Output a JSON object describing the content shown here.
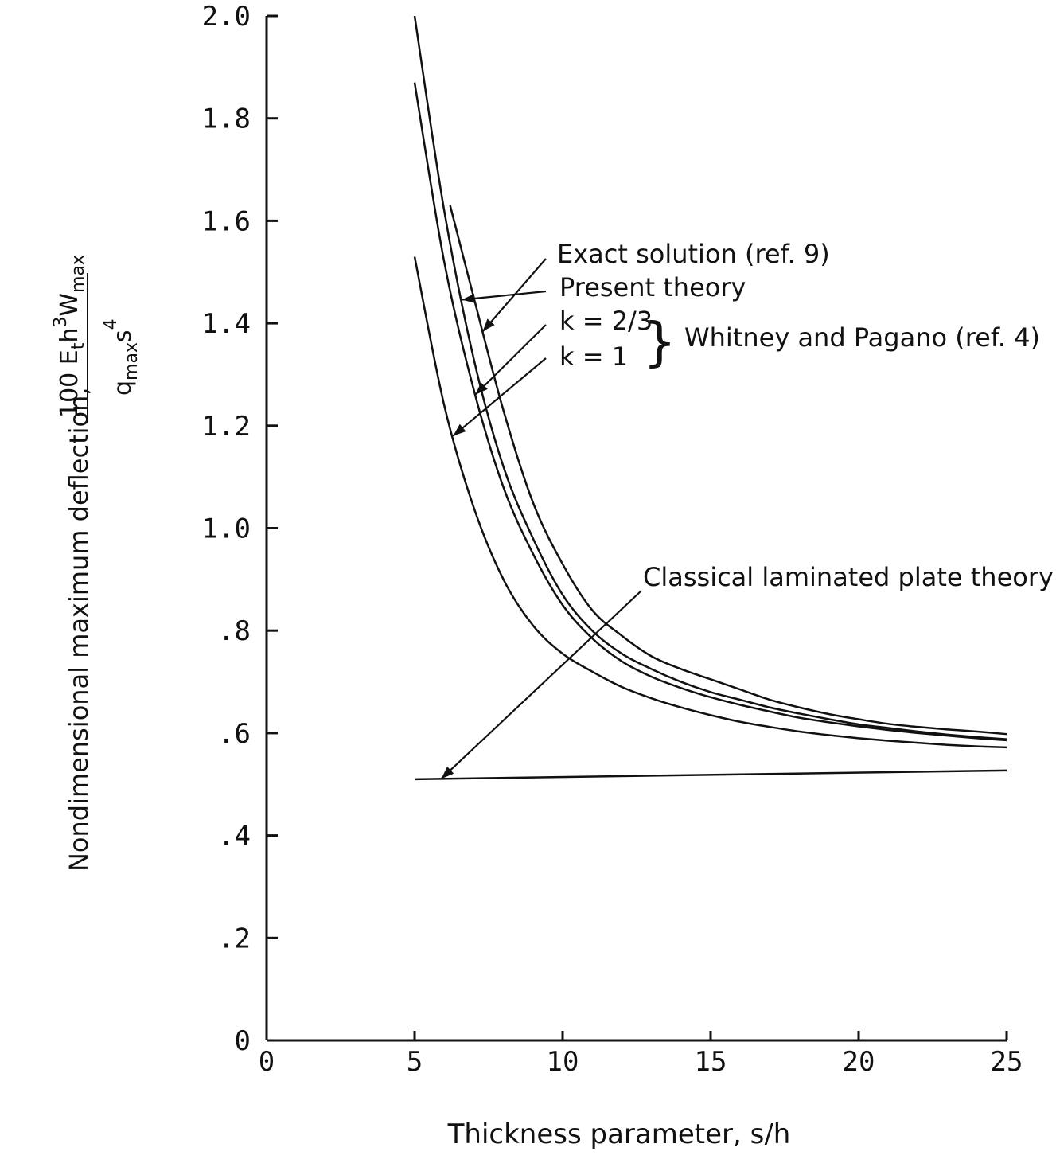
{
  "chart_data": {
    "type": "line",
    "title": "",
    "xlabel": "Thickness parameter, s/h",
    "ylabel": {
      "prefix": "Nondimensional maximum deflection,",
      "numerator_parts": [
        "100 E",
        "t",
        "h",
        "3",
        "W",
        "max"
      ],
      "denominator_parts": [
        "q",
        "max",
        "s",
        "4"
      ]
    },
    "xlim": [
      0,
      25
    ],
    "ylim": [
      0,
      2.0
    ],
    "x_ticks": [
      0,
      5,
      10,
      15,
      20,
      25
    ],
    "x_tick_labels": [
      "0",
      "5",
      "10",
      "15",
      "20",
      "25"
    ],
    "y_ticks": [
      0,
      0.2,
      0.4,
      0.6,
      0.8,
      1.0,
      1.2,
      1.4,
      1.6,
      1.8,
      2.0
    ],
    "y_tick_labels": [
      "0",
      ".2",
      ".4",
      ".6",
      ".8",
      "1.0",
      "1.2",
      "1.4",
      "1.6",
      "1.8",
      "2.0"
    ],
    "grid": false,
    "series": [
      {
        "name": "Exact solution (ref. 9)",
        "x": [
          6.2,
          7,
          8,
          9,
          10,
          11,
          12,
          13,
          14,
          15,
          16,
          17,
          18,
          19,
          20,
          21,
          22,
          23,
          24,
          25
        ],
        "y": [
          1.63,
          1.45,
          1.23,
          1.05,
          0.93,
          0.84,
          0.79,
          0.75,
          0.725,
          0.705,
          0.685,
          0.665,
          0.65,
          0.637,
          0.627,
          0.618,
          0.612,
          0.607,
          0.603,
          0.598
        ]
      },
      {
        "name": "Present theory",
        "x": [
          5,
          6,
          7,
          8,
          9,
          10,
          11,
          12,
          13,
          14,
          15,
          16,
          17,
          18,
          19,
          20,
          21,
          22,
          23,
          24,
          25
        ],
        "y": [
          2.0,
          1.62,
          1.33,
          1.12,
          0.98,
          0.87,
          0.8,
          0.755,
          0.725,
          0.7,
          0.68,
          0.665,
          0.65,
          0.638,
          0.627,
          0.617,
          0.61,
          0.603,
          0.597,
          0.592,
          0.588
        ]
      },
      {
        "name": "k = 2/3",
        "x": [
          5,
          6,
          7,
          8,
          9,
          10,
          11,
          12,
          13,
          14,
          15,
          16,
          17,
          18,
          19,
          20,
          21,
          22,
          23,
          24,
          25
        ],
        "y": [
          1.87,
          1.52,
          1.27,
          1.08,
          0.95,
          0.85,
          0.785,
          0.74,
          0.71,
          0.688,
          0.67,
          0.655,
          0.642,
          0.63,
          0.621,
          0.613,
          0.606,
          0.6,
          0.595,
          0.59,
          0.586
        ]
      },
      {
        "name": "k = 1",
        "x": [
          5,
          6,
          7,
          8,
          9,
          10,
          11,
          12,
          13,
          14,
          15,
          16,
          17,
          18,
          19,
          20,
          21,
          22,
          23,
          24,
          25
        ],
        "y": [
          1.53,
          1.24,
          1.04,
          0.9,
          0.81,
          0.755,
          0.72,
          0.69,
          0.668,
          0.65,
          0.635,
          0.622,
          0.612,
          0.603,
          0.596,
          0.59,
          0.585,
          0.581,
          0.577,
          0.574,
          0.572
        ]
      },
      {
        "name": "Classical laminated plate theory",
        "x": [
          5,
          25
        ],
        "y": [
          0.51,
          0.527
        ]
      }
    ],
    "annotations": [
      {
        "text": "Exact solution (ref. 9)",
        "target_series": "Exact solution (ref. 9)",
        "target_x": 7.3
      },
      {
        "text": "Present theory",
        "target_series": "Present theory",
        "target_x": 6.6
      },
      {
        "text": "k = 2/3",
        "target_series": "k = 2/3",
        "target_x": 7.05
      },
      {
        "text": "k = 1",
        "target_series": "k = 1",
        "target_x": 6.3
      },
      {
        "text": "Whitney and Pagano (ref. 4)",
        "bracket": "}"
      },
      {
        "text": "Classical laminated plate theory",
        "target_series": "Classical laminated plate theory",
        "target_x": 5.9
      }
    ],
    "colors": {
      "ink": "#111111",
      "background": "#ffffff"
    }
  }
}
